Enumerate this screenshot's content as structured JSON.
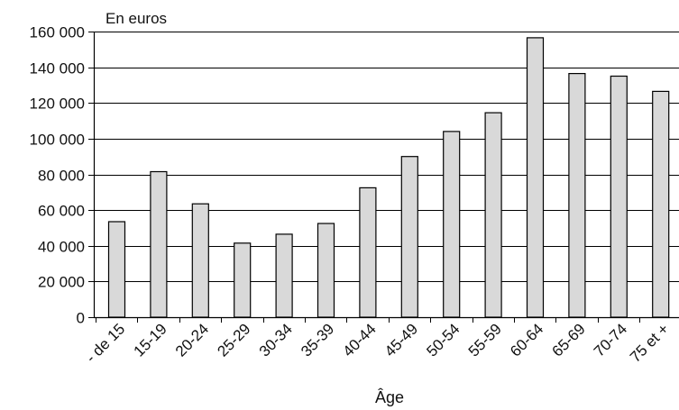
{
  "chart_data": {
    "type": "bar",
    "unit_label": "En euros",
    "xlabel": "Âge",
    "ylabel": "",
    "categories": [
      "- de 15",
      "15-19",
      "20-24",
      "25-29",
      "30-34",
      "35-39",
      "40-44",
      "45-49",
      "50-54",
      "55-59",
      "60-64",
      "65-69",
      "70-74",
      "75 et +"
    ],
    "values": [
      53500,
      81500,
      63500,
      41500,
      46500,
      52500,
      72500,
      90000,
      104000,
      114500,
      156500,
      136500,
      135000,
      126500
    ],
    "ylim": [
      0,
      160000
    ],
    "yticks": [
      0,
      20000,
      40000,
      60000,
      80000,
      100000,
      120000,
      140000,
      160000
    ],
    "ytick_labels": [
      "0",
      "20 000",
      "40 000",
      "60 000",
      "80 000",
      "100 000",
      "120 000",
      "140 000",
      "160 000"
    ],
    "grid": true,
    "bar_color": "#d9d9d9",
    "edge_color": "#000000"
  }
}
